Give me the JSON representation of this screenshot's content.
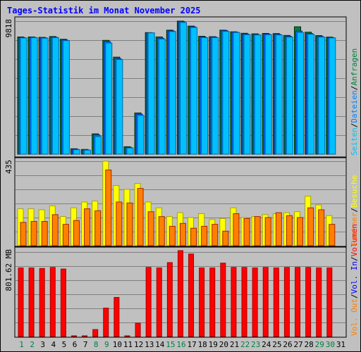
{
  "title": "Tages-Statistik im Monat November 2025",
  "chart_data": [
    {
      "type": "bar",
      "panel": "top",
      "ymax_label": "9818",
      "ylim": [
        0,
        9818
      ],
      "categories": [
        "1",
        "2",
        "3",
        "4",
        "5",
        "6",
        "7",
        "8",
        "9",
        "10",
        "11",
        "12",
        "13",
        "14",
        "15",
        "16",
        "17",
        "18",
        "19",
        "20",
        "21",
        "22",
        "23",
        "24",
        "25",
        "26",
        "27",
        "28",
        "29",
        "30",
        "31"
      ],
      "legend": [
        {
          "label": "Anfragen",
          "color": "#008040"
        },
        {
          "label": "Dateien",
          "color": "#0080ff"
        },
        {
          "label": "Seiten",
          "color": "#00c0ff"
        }
      ],
      "separators": [
        {
          "text": "/",
          "color": "#000000"
        },
        {
          "text": "/",
          "color": "#000000"
        }
      ],
      "series": [
        {
          "name": "Anfragen",
          "color": "#008040",
          "values": [
            8650,
            8650,
            8620,
            8680,
            8480,
            400,
            350,
            1500,
            8400,
            7160,
            550,
            3040,
            8970,
            8650,
            9150,
            9818,
            9450,
            8700,
            8670,
            9150,
            9030,
            8920,
            8880,
            8910,
            8900,
            8760,
            9400,
            9000,
            8750,
            8640,
            null
          ]
        },
        {
          "name": "Dateien",
          "color": "#0080ff",
          "values": [
            8600,
            8620,
            8590,
            8630,
            8420,
            360,
            320,
            1420,
            8300,
            7050,
            500,
            2950,
            8950,
            8560,
            9090,
            9780,
            9400,
            8640,
            8640,
            9120,
            9000,
            8860,
            8820,
            8860,
            8840,
            8690,
            9080,
            8900,
            8680,
            8600,
            null
          ]
        },
        {
          "name": "Seiten",
          "color": "#00c0ff",
          "values": [
            8580,
            8600,
            8560,
            8600,
            8380,
            330,
            300,
            1300,
            8200,
            6980,
            460,
            2860,
            8950,
            8500,
            9050,
            9720,
            9350,
            8600,
            8600,
            9060,
            8980,
            8820,
            8800,
            8820,
            8800,
            8640,
            8980,
            8850,
            8640,
            8580,
            null
          ]
        }
      ]
    },
    {
      "type": "bar",
      "panel": "middle",
      "ymax_label": "435",
      "ylim": [
        0,
        435
      ],
      "categories": [
        "1",
        "2",
        "3",
        "4",
        "5",
        "6",
        "7",
        "8",
        "9",
        "10",
        "11",
        "12",
        "13",
        "14",
        "15",
        "16",
        "17",
        "18",
        "19",
        "20",
        "21",
        "22",
        "23",
        "24",
        "25",
        "26",
        "27",
        "28",
        "29",
        "30",
        "31"
      ],
      "legend": [
        {
          "label": "Besuche",
          "color": "#ffff00"
        },
        {
          "label": "Rechner",
          "color": "#ff8000"
        }
      ],
      "separators": [
        {
          "text": "/",
          "color": "#000000"
        }
      ],
      "series": [
        {
          "name": "Besuche",
          "color": "#ffff00",
          "values": [
            190,
            190,
            185,
            205,
            150,
            195,
            225,
            230,
            435,
            310,
            290,
            320,
            225,
            195,
            150,
            170,
            145,
            165,
            135,
            140,
            195,
            145,
            150,
            160,
            165,
            170,
            175,
            255,
            210,
            155,
            null
          ]
        },
        {
          "name": "Rechner",
          "color": "#ff8000",
          "values": [
            120,
            125,
            125,
            160,
            110,
            130,
            190,
            180,
            390,
            225,
            220,
            295,
            175,
            150,
            100,
            115,
            90,
            100,
            110,
            75,
            165,
            140,
            150,
            145,
            170,
            155,
            145,
            195,
            185,
            110,
            null
          ]
        }
      ]
    },
    {
      "type": "bar",
      "panel": "bottom",
      "ymax_label": "801.62 MB",
      "ylim": [
        0,
        801.62
      ],
      "categories": [
        "1",
        "2",
        "3",
        "4",
        "5",
        "6",
        "7",
        "8",
        "9",
        "10",
        "11",
        "12",
        "13",
        "14",
        "15",
        "16",
        "17",
        "18",
        "19",
        "20",
        "21",
        "22",
        "23",
        "24",
        "25",
        "26",
        "27",
        "28",
        "29",
        "30",
        "31"
      ],
      "legend": [
        {
          "label": "Volumen",
          "color": "#ff0000"
        },
        {
          "label": "Vol. In",
          "color": "#0000ff"
        },
        {
          "label": "Vol. Out",
          "color": "#ff8000"
        }
      ],
      "separators": [
        {
          "text": "/",
          "color": "#000000"
        },
        {
          "text": "/",
          "color": "#000000"
        }
      ],
      "series": [
        {
          "name": "Volumen",
          "color": "#ff0000",
          "values": [
            640,
            640,
            635,
            645,
            630,
            5,
            5,
            65,
            265,
            365,
            5,
            125,
            645,
            640,
            690,
            801.62,
            770,
            640,
            640,
            685,
            645,
            645,
            640,
            645,
            640,
            645,
            645,
            645,
            640,
            640,
            null
          ]
        }
      ]
    }
  ],
  "xaxis": {
    "labels": [
      "1",
      "2",
      "3",
      "4",
      "5",
      "6",
      "7",
      "8",
      "9",
      "10",
      "11",
      "12",
      "13",
      "14",
      "15",
      "16",
      "17",
      "18",
      "19",
      "20",
      "21",
      "22",
      "23",
      "24",
      "25",
      "26",
      "27",
      "28",
      "29",
      "30",
      "31"
    ],
    "weekend_color": "#008040",
    "weekday_color": "#000000",
    "weekend_days": [
      1,
      2,
      8,
      9,
      15,
      16,
      22,
      23,
      29,
      30
    ]
  }
}
